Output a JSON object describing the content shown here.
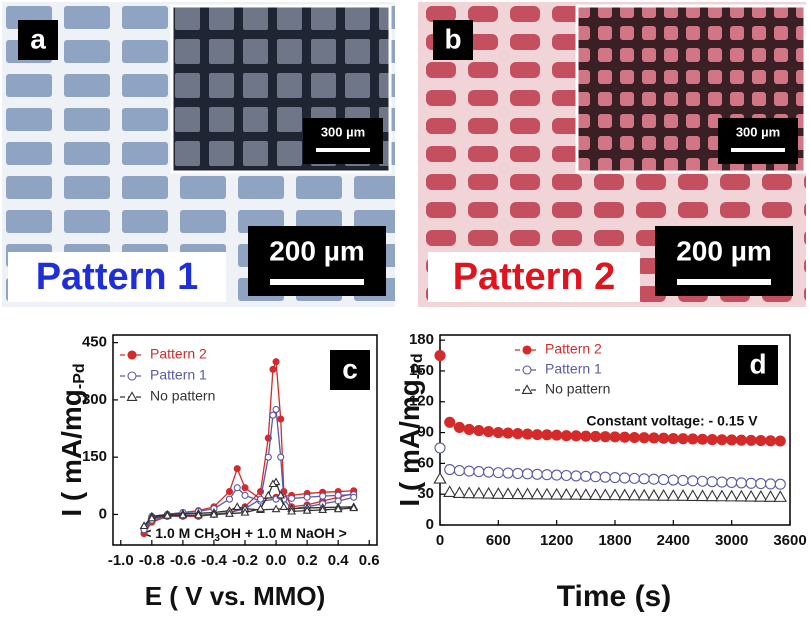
{
  "images": [
    {
      "label": "a",
      "scale_main": "200 µm",
      "scale_inset": "300 µm",
      "caption": "Pattern 1"
    },
    {
      "label": "b",
      "scale_main": "200 µm",
      "scale_inset": "300 µm",
      "caption": "Pattern 2"
    }
  ],
  "chart_data": [
    {
      "type": "line",
      "panel_label": "c",
      "x_label": "E ( V vs. MMO)",
      "y_label": "I ( mA/mg",
      "y_label_sub": "-Pd",
      "annotation": [
        "< 1.0 M CH",
        "3",
        "OH + 1.0 M NaOH >"
      ],
      "connect": true,
      "xlim": [
        -1.05,
        0.65
      ],
      "ylim": [
        -80,
        470
      ],
      "xticks": [
        {
          "value": -1.0,
          "label": "-1.0"
        },
        -0.8,
        -0.6,
        -0.4,
        -0.2,
        {
          "value": 0,
          "label": "0.0"
        },
        0.2,
        0.4,
        0.6
      ],
      "yticks": [
        0,
        150,
        300,
        450
      ],
      "x": [
        -0.85,
        -0.8,
        -0.7,
        -0.6,
        -0.5,
        -0.4,
        -0.3,
        -0.25,
        -0.2,
        -0.1,
        0,
        0.1,
        0.2,
        0.3,
        0.4,
        0.5,
        0.5,
        0.4,
        0.3,
        0.2,
        0.1,
        0.05,
        0.03,
        0,
        -0.02,
        -0.05,
        -0.1,
        -0.2,
        -0.3,
        -0.4,
        -0.5,
        -0.6,
        -0.7,
        -0.8,
        -0.85
      ],
      "series": [
        {
          "name": "Pattern 2",
          "color": "#d42a2a",
          "marker": "filled-circle",
          "values": [
            -50,
            -10,
            0,
            5,
            10,
            20,
            60,
            120,
            70,
            40,
            45,
            50,
            55,
            58,
            60,
            62,
            55,
            45,
            35,
            25,
            20,
            60,
            250,
            400,
            380,
            200,
            60,
            20,
            5,
            0,
            -5,
            -5,
            -5,
            -20,
            -50
          ]
        },
        {
          "name": "Pattern 1",
          "color": "#5a5aa8",
          "marker": "open-circle",
          "values": [
            -40,
            -5,
            0,
            5,
            8,
            15,
            40,
            70,
            50,
            35,
            40,
            42,
            45,
            48,
            50,
            52,
            45,
            35,
            28,
            20,
            15,
            40,
            150,
            275,
            260,
            150,
            40,
            15,
            5,
            0,
            -3,
            -3,
            -5,
            -15,
            -40
          ]
        },
        {
          "name": "No pattern",
          "color": "#333333",
          "marker": "open-triangle",
          "values": [
            -30,
            -5,
            0,
            2,
            3,
            5,
            10,
            20,
            15,
            12,
            14,
            15,
            17,
            18,
            19,
            20,
            17,
            14,
            12,
            10,
            8,
            20,
            50,
            85,
            80,
            50,
            15,
            5,
            2,
            0,
            -2,
            -2,
            -3,
            -10,
            -30
          ]
        }
      ]
    },
    {
      "type": "line",
      "panel_label": "d",
      "x_label": "Time (s)",
      "y_label": "I ( mA/mg",
      "y_label_sub": "-Pd",
      "annotation": [
        "Constant voltage:  - 0.15 V"
      ],
      "connect": false,
      "xlim": [
        0,
        3600
      ],
      "ylim": [
        0,
        185
      ],
      "xticks": [
        0,
        600,
        1200,
        1800,
        2400,
        3000,
        3600
      ],
      "yticks": [
        0,
        30,
        60,
        90,
        120,
        150,
        180
      ],
      "x": [
        0,
        100,
        200,
        300,
        400,
        500,
        600,
        700,
        800,
        900,
        1000,
        1100,
        1200,
        1300,
        1400,
        1500,
        1600,
        1700,
        1800,
        1900,
        2000,
        2100,
        2200,
        2300,
        2400,
        2500,
        2600,
        2700,
        2800,
        2900,
        3000,
        3100,
        3200,
        3300,
        3400,
        3500
      ],
      "series": [
        {
          "name": "Pattern 2",
          "color": "#d42a2a",
          "marker": "filled-circle",
          "values": [
            165,
            100,
            95,
            93,
            92,
            91,
            90,
            89.5,
            89,
            88.5,
            88,
            87.8,
            87.5,
            87,
            86.8,
            86.5,
            86.2,
            86,
            85.8,
            85.5,
            85.2,
            85,
            84.8,
            84.5,
            84.2,
            84,
            83.8,
            83.5,
            83.2,
            83,
            82.8,
            82.6,
            82.4,
            82.2,
            82,
            81.8
          ]
        },
        {
          "name": "Pattern 1",
          "color": "#5a5aa8",
          "marker": "open-circle",
          "values": [
            75,
            54,
            53,
            52.5,
            52,
            51.5,
            51,
            50.6,
            50.2,
            49.8,
            49.4,
            49,
            48.6,
            48.2,
            47.8,
            47.4,
            47,
            46.6,
            46.2,
            45.8,
            45.4,
            45,
            44.6,
            44.2,
            43.8,
            43.4,
            43,
            42.6,
            42.2,
            41.8,
            41.4,
            41,
            40.6,
            40.3,
            40,
            39.7
          ]
        },
        {
          "name": "No pattern",
          "color": "#333333",
          "marker": "open-triangle",
          "values": [
            45,
            32,
            31,
            30.8,
            30.6,
            30.4,
            30.2,
            30,
            29.9,
            29.8,
            29.7,
            29.6,
            29.5,
            29.4,
            29.3,
            29.2,
            29.1,
            29,
            28.9,
            28.8,
            28.7,
            28.6,
            28.5,
            28.4,
            28.3,
            28.2,
            28.1,
            28,
            27.9,
            27.8,
            27.7,
            27.6,
            27.5,
            27.4,
            27.3,
            27.2
          ]
        }
      ]
    }
  ]
}
